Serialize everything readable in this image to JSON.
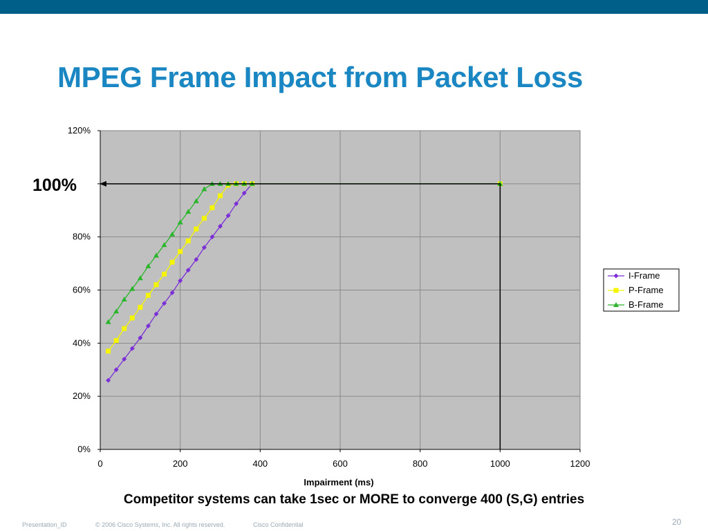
{
  "slide": {
    "title": "MPEG Frame Impact from Packet Loss",
    "callout": "100%",
    "caption": "Competitor systems can take 1sec or MORE to converge 400 (S,G) entries",
    "footer": {
      "presentation_id": "Presentation_ID",
      "copyright": "© 2006 Cisco Systems, Inc. All rights reserved.",
      "confidential": "Cisco Confidential",
      "page_number": "20"
    },
    "colors": {
      "top_bar": "#005f89",
      "title": "#1a87c3"
    }
  },
  "chart_data": {
    "type": "line",
    "title": "",
    "xlabel": "Impairment (ms)",
    "ylabel": "",
    "xlim": [
      0,
      1200
    ],
    "ylim": [
      0,
      1.2
    ],
    "x_ticks": [
      0,
      200,
      400,
      600,
      800,
      1000,
      1200
    ],
    "x_tick_labels": [
      "0",
      "200",
      "400",
      "600",
      "800",
      "1000",
      "1200"
    ],
    "y_ticks": [
      0,
      0.2,
      0.4,
      0.6,
      0.8,
      1.0,
      1.2
    ],
    "y_tick_labels": [
      "0%",
      "20%",
      "40%",
      "60%",
      "80%",
      "",
      "120%"
    ],
    "grid": true,
    "legend_position": "right",
    "plot_background": "#c0c0c0",
    "series": [
      {
        "name": "I-Frame",
        "color": "#7b2fd6",
        "marker": "diamond",
        "points": [
          [
            20,
            0.26
          ],
          [
            40,
            0.3
          ],
          [
            60,
            0.34
          ],
          [
            80,
            0.38
          ],
          [
            100,
            0.42
          ],
          [
            120,
            0.465
          ],
          [
            140,
            0.51
          ],
          [
            160,
            0.55
          ],
          [
            180,
            0.59
          ],
          [
            200,
            0.635
          ],
          [
            220,
            0.675
          ],
          [
            240,
            0.715
          ],
          [
            260,
            0.76
          ],
          [
            280,
            0.8
          ],
          [
            300,
            0.84
          ],
          [
            320,
            0.88
          ],
          [
            340,
            0.925
          ],
          [
            360,
            0.965
          ],
          [
            380,
            1.0
          ],
          [
            1000,
            1.0
          ]
        ]
      },
      {
        "name": "P-Frame",
        "color": "#f5f500",
        "marker": "square",
        "points": [
          [
            20,
            0.37
          ],
          [
            40,
            0.41
          ],
          [
            60,
            0.455
          ],
          [
            80,
            0.495
          ],
          [
            100,
            0.535
          ],
          [
            120,
            0.58
          ],
          [
            140,
            0.62
          ],
          [
            160,
            0.66
          ],
          [
            180,
            0.705
          ],
          [
            200,
            0.745
          ],
          [
            220,
            0.785
          ],
          [
            240,
            0.83
          ],
          [
            260,
            0.87
          ],
          [
            280,
            0.91
          ],
          [
            300,
            0.955
          ],
          [
            320,
            0.995
          ],
          [
            340,
            1.0
          ],
          [
            360,
            1.0
          ],
          [
            380,
            1.0
          ],
          [
            1000,
            1.0
          ]
        ]
      },
      {
        "name": "B-Frame",
        "color": "#2bb52b",
        "marker": "triangle",
        "points": [
          [
            20,
            0.48
          ],
          [
            40,
            0.52
          ],
          [
            60,
            0.565
          ],
          [
            80,
            0.605
          ],
          [
            100,
            0.645
          ],
          [
            120,
            0.69
          ],
          [
            140,
            0.73
          ],
          [
            160,
            0.77
          ],
          [
            180,
            0.81
          ],
          [
            200,
            0.855
          ],
          [
            220,
            0.895
          ],
          [
            240,
            0.935
          ],
          [
            260,
            0.98
          ],
          [
            280,
            1.0
          ],
          [
            300,
            1.0
          ],
          [
            320,
            1.0
          ],
          [
            340,
            1.0
          ],
          [
            360,
            1.0
          ],
          [
            380,
            1.0
          ],
          [
            1000,
            1.0
          ]
        ]
      }
    ],
    "annotations": [
      {
        "type": "arrow",
        "from": [
          1000,
          1.0
        ],
        "to": [
          0,
          1.0
        ],
        "color": "#000000"
      },
      {
        "type": "line",
        "from": [
          1000,
          0.0
        ],
        "to": [
          1000,
          1.0
        ],
        "color": "#000000"
      }
    ]
  }
}
